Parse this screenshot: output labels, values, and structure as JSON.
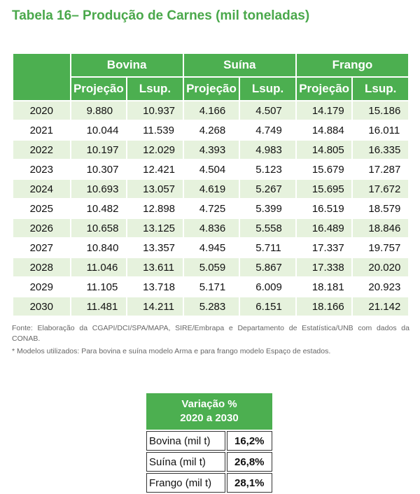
{
  "title": "Tabela 16– Produção de Carnes (mil toneladas)",
  "table": {
    "groups": [
      "Bovina",
      "Suína",
      "Frango"
    ],
    "subheaders": [
      "Projeção",
      "Lsup.",
      "Projeção",
      "Lsup.",
      "Projeção",
      "Lsup."
    ],
    "rows": [
      {
        "year": "2020",
        "cells": [
          "9.880",
          "10.937",
          "4.166",
          "4.507",
          "14.179",
          "15.186"
        ]
      },
      {
        "year": "2021",
        "cells": [
          "10.044",
          "11.539",
          "4.268",
          "4.749",
          "14.884",
          "16.011"
        ]
      },
      {
        "year": "2022",
        "cells": [
          "10.197",
          "12.029",
          "4.393",
          "4.983",
          "14.805",
          "16.335"
        ]
      },
      {
        "year": "2023",
        "cells": [
          "10.307",
          "12.421",
          "4.504",
          "5.123",
          "15.679",
          "17.287"
        ]
      },
      {
        "year": "2024",
        "cells": [
          "10.693",
          "13.057",
          "4.619",
          "5.267",
          "15.695",
          "17.672"
        ]
      },
      {
        "year": "2025",
        "cells": [
          "10.482",
          "12.898",
          "4.725",
          "5.399",
          "16.519",
          "18.579"
        ]
      },
      {
        "year": "2026",
        "cells": [
          "10.658",
          "13.125",
          "4.836",
          "5.558",
          "16.489",
          "18.846"
        ]
      },
      {
        "year": "2027",
        "cells": [
          "10.840",
          "13.357",
          "4.945",
          "5.711",
          "17.337",
          "19.757"
        ]
      },
      {
        "year": "2028",
        "cells": [
          "11.046",
          "13.611",
          "5.059",
          "5.867",
          "17.338",
          "20.020"
        ]
      },
      {
        "year": "2029",
        "cells": [
          "11.105",
          "13.718",
          "5.171",
          "6.009",
          "18.181",
          "20.923"
        ]
      },
      {
        "year": "2030",
        "cells": [
          "11.481",
          "14.211",
          "5.283",
          "6.151",
          "18.166",
          "21.142"
        ]
      }
    ]
  },
  "source_note": "Fonte: Elaboração da CGAPI/DCI/SPA/MAPA, SIRE/Embrapa e Departamento de Estatística/UNB com dados da CONAB.",
  "models_note": "* Modelos utilizados: Para bovina e suína modelo Arma e para frango modelo Espaço de estados.",
  "variation": {
    "header_line1": "Variação %",
    "header_line2": "2020 a 2030",
    "rows": [
      {
        "label": "Bovina (mil t)",
        "value": "16,2%"
      },
      {
        "label": "Suína (mil t)",
        "value": "26,8%"
      },
      {
        "label": "Frango (mil t)",
        "value": "28,1%"
      }
    ]
  },
  "colors": {
    "header_green": "#4caf50",
    "title_green": "#4aa84b",
    "stripe_green": "#e6f2dd"
  }
}
